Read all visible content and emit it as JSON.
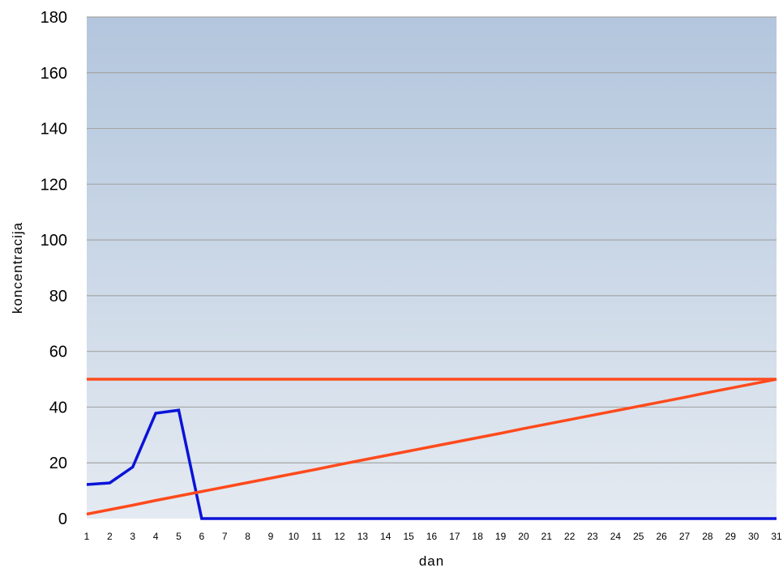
{
  "colors": {
    "background_top": "#b3c6dd",
    "background_bottom": "#e4eaf1",
    "gridline": "#a6a6a6",
    "series_concentration": "#0a14d8",
    "series_limit": "#ff4a1c",
    "series_trend": "#ff4a1c"
  },
  "chart_data": {
    "type": "line",
    "title": "",
    "xlabel": "dan",
    "ylabel": "koncentracija",
    "ylim": [
      0,
      180
    ],
    "yticks": [
      0,
      20,
      40,
      60,
      80,
      100,
      120,
      140,
      160,
      180
    ],
    "grid": true,
    "legend": "none",
    "x": [
      1,
      2,
      3,
      4,
      5,
      6,
      7,
      8,
      9,
      10,
      11,
      12,
      13,
      14,
      15,
      16,
      17,
      18,
      19,
      20,
      21,
      22,
      23,
      24,
      25,
      26,
      27,
      28,
      29,
      30,
      31
    ],
    "series": [
      {
        "color_key": "series_concentration",
        "values": [
          12.2,
          12.8,
          18.5,
          37.8,
          38.9,
          0,
          0,
          0,
          0,
          0,
          0,
          0,
          0,
          0,
          0,
          0,
          0,
          0,
          0,
          0,
          0,
          0,
          0,
          0,
          0,
          0,
          0,
          0,
          0,
          0,
          0
        ]
      },
      {
        "color_key": "series_limit",
        "values": [
          50,
          50,
          50,
          50,
          50,
          50,
          50,
          50,
          50,
          50,
          50,
          50,
          50,
          50,
          50,
          50,
          50,
          50,
          50,
          50,
          50,
          50,
          50,
          50,
          50,
          50,
          50,
          50,
          50,
          50,
          50
        ]
      },
      {
        "color_key": "series_trend",
        "values": [
          1.6,
          3.2,
          4.8,
          6.5,
          8.1,
          9.7,
          11.3,
          12.9,
          14.5,
          16.1,
          17.7,
          19.4,
          21.0,
          22.6,
          24.2,
          25.8,
          27.4,
          29.0,
          30.6,
          32.3,
          33.9,
          35.5,
          37.1,
          38.7,
          40.3,
          41.9,
          43.5,
          45.2,
          46.8,
          48.4,
          50
        ]
      }
    ]
  }
}
